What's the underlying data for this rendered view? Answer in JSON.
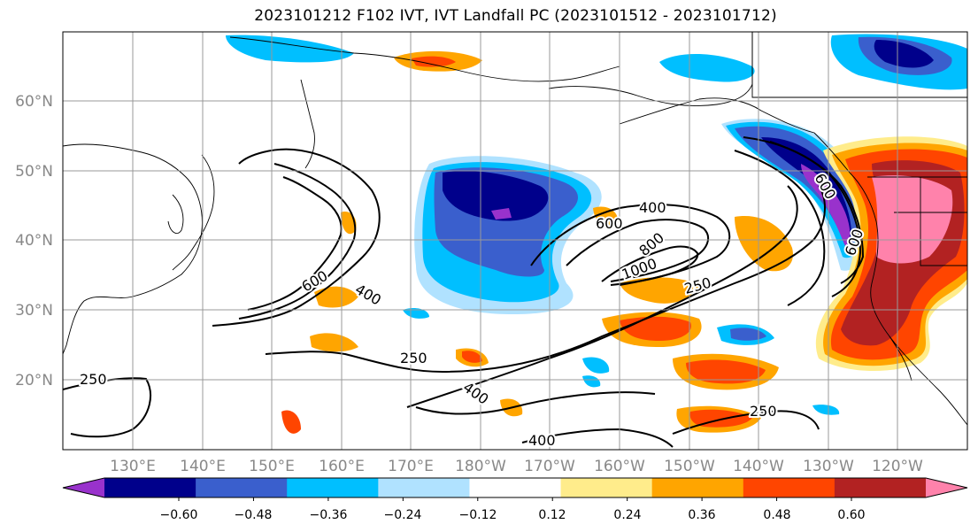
{
  "title": "2023101212 F102 IVT, IVT Landfall PC (2023101512 - 2023101712)",
  "latitude_labels": [
    "60°N",
    "50°N",
    "40°N",
    "30°N",
    "20°N"
  ],
  "longitude_labels": [
    "130°E",
    "140°E",
    "150°E",
    "160°E",
    "170°E",
    "180°W",
    "170°W",
    "160°W",
    "150°W",
    "140°W",
    "130°W",
    "120°W"
  ],
  "contour_labels": [
    "250",
    "250",
    "250",
    "250",
    "400",
    "400",
    "400",
    "400",
    "600",
    "600",
    "600",
    "600",
    "800",
    "1000"
  ],
  "colorbar": {
    "tick_labels": [
      "−0.60",
      "−0.48",
      "−0.36",
      "−0.24",
      "−0.12",
      "0.12",
      "0.24",
      "0.36",
      "0.48",
      "0.60"
    ],
    "colors": [
      "#9932cc",
      "#00008b",
      "#3a5fcd",
      "#00bfff",
      "#b0e2ff",
      "#ffffff",
      "#ffec8b",
      "#ffa500",
      "#ff4500",
      "#b22222",
      "#ff82ab"
    ]
  }
}
